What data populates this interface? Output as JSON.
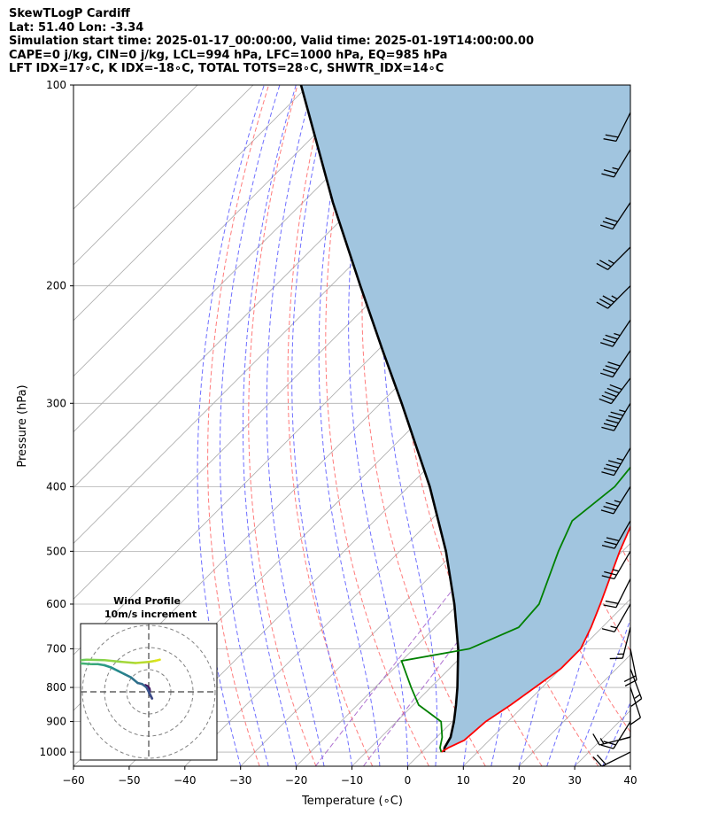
{
  "header": {
    "title": "SkewTLogP Cardiff",
    "location": "Lat: 51.40   Lon: -3.34",
    "times": "Simulation start time: 2025-01-17_00:00:00, Valid time: 2025-01-19T14:00:00.00",
    "indices1": "CAPE=0 j/kg, CIN=0 j/kg, LCL=994 hPa, LFC=1000 hPa, EQ=985 hPa",
    "indices2": "LFT IDX=17∘C, K IDX=-18∘C, TOTAL TOTS=28∘C, SHWTR_IDX=14∘C"
  },
  "chart_data": {
    "type": "skew-t log-p",
    "xlabel": "Temperature (∘C)",
    "ylabel": "Pressure (hPa)",
    "xlim": [
      -60,
      40
    ],
    "ylim": [
      1050,
      100
    ],
    "xticks": [
      -60,
      -50,
      -40,
      -30,
      -20,
      -10,
      0,
      10,
      20,
      30,
      40
    ],
    "yticks": [
      100,
      200,
      300,
      400,
      500,
      600,
      700,
      800,
      900,
      1000
    ],
    "temperature_profile": [
      [
        1000,
        3.5
      ],
      [
        985,
        4.0
      ],
      [
        960,
        5.5
      ],
      [
        900,
        6.0
      ],
      [
        850,
        7.5
      ],
      [
        750,
        10.0
      ],
      [
        700,
        10.0
      ],
      [
        650,
        8.0
      ],
      [
        600,
        5.5
      ],
      [
        500,
        -0.5
      ],
      [
        400,
        -7.0
      ],
      [
        330,
        -11.5
      ],
      [
        280,
        -13.5
      ],
      [
        240,
        -14.0
      ],
      [
        210,
        -12.0
      ],
      [
        190,
        -9.0
      ],
      [
        175,
        -6.0
      ],
      [
        160,
        -3.5
      ],
      [
        140,
        -1.5
      ],
      [
        110,
        0.5
      ],
      [
        100,
        1.0
      ]
    ],
    "dewpoint_profile": [
      [
        1000,
        3.5
      ],
      [
        985,
        2.5
      ],
      [
        950,
        1.0
      ],
      [
        900,
        -2.0
      ],
      [
        850,
        -9.0
      ],
      [
        800,
        -13.5
      ],
      [
        730,
        -20.0
      ],
      [
        700,
        -10.0
      ],
      [
        650,
        -5.0
      ],
      [
        600,
        -5.5
      ],
      [
        500,
        -11.5
      ],
      [
        450,
        -14.5
      ],
      [
        400,
        -13.0
      ],
      [
        360,
        -14.0
      ],
      [
        320,
        -18.0
      ],
      [
        290,
        -20.0
      ],
      [
        250,
        -20.0
      ],
      [
        200,
        -21.0
      ],
      [
        170,
        -23.5
      ],
      [
        152,
        -26.5
      ],
      [
        140,
        -29.5
      ],
      [
        120,
        -29.5
      ],
      [
        100,
        -29.0
      ]
    ],
    "parcel_profile": [
      [
        1000,
        4.0
      ],
      [
        985,
        3.3
      ],
      [
        950,
        2.5
      ],
      [
        900,
        0.3
      ],
      [
        850,
        -2.3
      ],
      [
        800,
        -5.2
      ],
      [
        700,
        -12.0
      ],
      [
        600,
        -20.7
      ],
      [
        500,
        -31.7
      ],
      [
        400,
        -46.2
      ],
      [
        300,
        -66.2
      ],
      [
        250,
        -79.1
      ],
      [
        200,
        -94.7
      ],
      [
        150,
        -114.6
      ],
      [
        100,
        -141.4
      ]
    ],
    "cape_fill_color": "#a1c5df",
    "colors": {
      "temperature": "#ff0000",
      "dewpoint": "#008000",
      "parcel": "#000000",
      "dry_adiabats": "#ff5a5a",
      "moist_adiabats": "#4a4aff",
      "isotherms": "#a9a9a9",
      "mixing_ratio": "#9a4dc4"
    },
    "wind_barbs": [
      {
        "p": 1000,
        "u": 10,
        "v": 5
      },
      {
        "p": 950,
        "u": 8,
        "v": 2
      },
      {
        "p": 900,
        "u": 5,
        "v": 8
      },
      {
        "p": 850,
        "u": 0,
        "v": 5
      },
      {
        "p": 800,
        "u": -2,
        "v": 6
      },
      {
        "p": 750,
        "u": -3,
        "v": 8
      },
      {
        "p": 700,
        "u": -2,
        "v": 10
      },
      {
        "p": 650,
        "u": 2,
        "v": 8
      },
      {
        "p": 600,
        "u": 4,
        "v": 7
      },
      {
        "p": 550,
        "u": 5,
        "v": 10
      },
      {
        "p": 500,
        "u": 7,
        "v": 12
      },
      {
        "p": 450,
        "u": 8,
        "v": 14
      },
      {
        "p": 400,
        "u": 10,
        "v": 16
      },
      {
        "p": 350,
        "u": 12,
        "v": 20
      },
      {
        "p": 300,
        "u": 15,
        "v": 25
      },
      {
        "p": 275,
        "u": 15,
        "v": 20
      },
      {
        "p": 250,
        "u": 12,
        "v": 18
      },
      {
        "p": 225,
        "u": 10,
        "v": 15
      },
      {
        "p": 200,
        "u": 12,
        "v": 12
      },
      {
        "p": 175,
        "u": 10,
        "v": 10
      },
      {
        "p": 150,
        "u": 8,
        "v": 12
      },
      {
        "p": 125,
        "u": 6,
        "v": 10
      },
      {
        "p": 110,
        "u": 5,
        "v": 10
      }
    ],
    "hodograph": {
      "title": "Wind Profile",
      "subtitle": "10m/s increment",
      "points": [
        [
          -1.5,
          3.0
        ],
        [
          -0.5,
          2.5
        ],
        [
          0.3,
          1.5
        ],
        [
          0.5,
          0.5
        ],
        [
          0.2,
          -0.5
        ],
        [
          0.8,
          -1.8
        ],
        [
          1.5,
          -3.0
        ],
        [
          0.5,
          -1.0
        ],
        [
          -1.0,
          2.0
        ],
        [
          -3.0,
          3.5
        ],
        [
          -5.0,
          4.0
        ],
        [
          -8.0,
          6.5
        ],
        [
          -11.0,
          8.0
        ],
        [
          -14.0,
          9.5
        ],
        [
          -17.0,
          11.0
        ],
        [
          -20.0,
          12.0
        ],
        [
          -23.0,
          12.5
        ],
        [
          -26.0,
          12.5
        ],
        [
          -30.0,
          12.8
        ],
        [
          -33.0,
          12.5
        ],
        [
          -38.0,
          13.0
        ],
        [
          -35.0,
          14.0
        ],
        [
          -28.0,
          14.5
        ],
        [
          -20.0,
          14.3
        ],
        [
          -12.0,
          13.5
        ],
        [
          -6.0,
          13.0
        ],
        [
          0.0,
          13.5
        ],
        [
          3.0,
          14.0
        ],
        [
          5.0,
          14.5
        ]
      ]
    }
  }
}
